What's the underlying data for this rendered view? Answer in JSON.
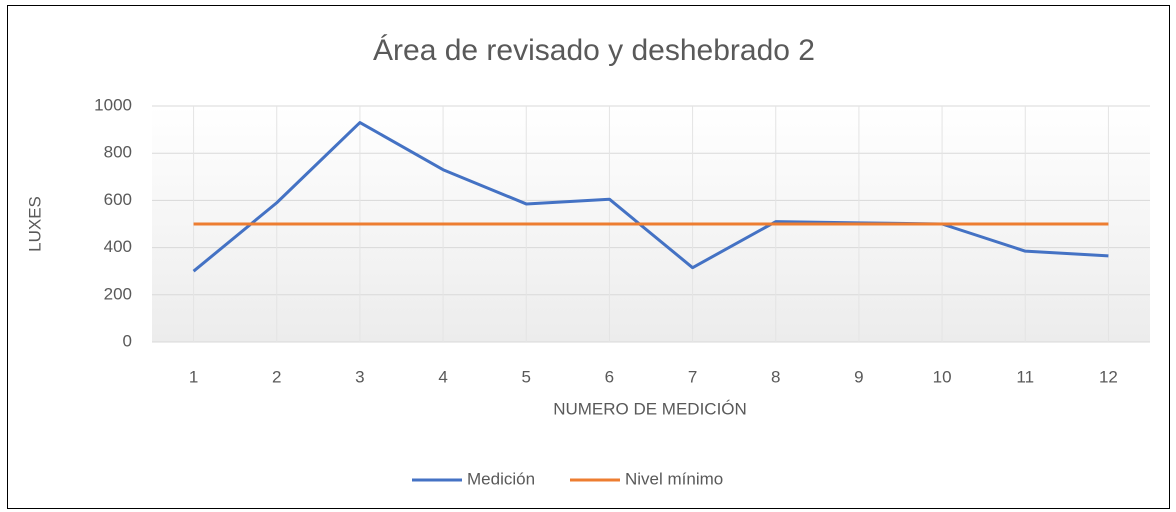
{
  "chart_data": {
    "type": "line",
    "title": "Área de revisado y deshebrado 2",
    "x_label": "NUMERO DE MEDICIÓN",
    "y_label": "LUXES",
    "categories": [
      "1",
      "2",
      "3",
      "4",
      "5",
      "6",
      "7",
      "8",
      "9",
      "10",
      "11",
      "12"
    ],
    "series": [
      {
        "name": "Medición",
        "color": "#4472c4",
        "values": [
          300,
          590,
          930,
          730,
          585,
          605,
          315,
          510,
          505,
          500,
          385,
          365
        ]
      },
      {
        "name": "Nivel mínimo",
        "color": "#ed7d31",
        "values": [
          500,
          500,
          500,
          500,
          500,
          500,
          500,
          500,
          500,
          500,
          500,
          500
        ]
      }
    ],
    "ylim": [
      0,
      1000
    ],
    "yticks": [
      0,
      200,
      400,
      600,
      800,
      1000
    ],
    "grid": true,
    "legend": "bottom"
  }
}
